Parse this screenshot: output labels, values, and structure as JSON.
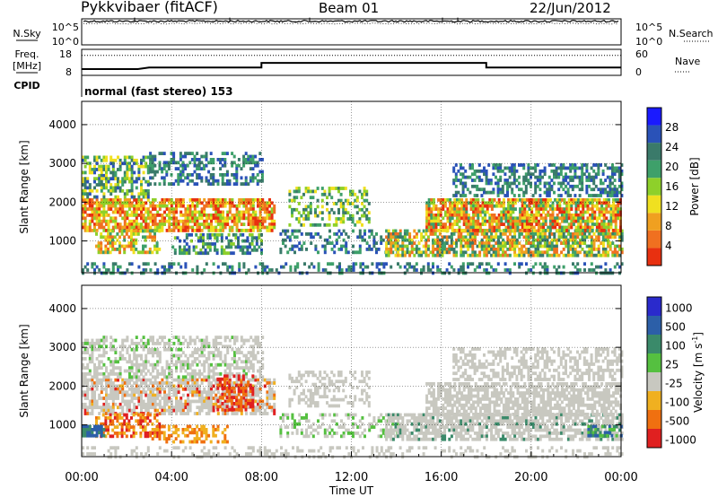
{
  "header": {
    "station": "Pykkvibaer (fitACF)",
    "beam": "Beam 01",
    "date": "22/Jun/2012"
  },
  "chart_data": [
    {
      "type": "line",
      "title": "",
      "ylabel_left": "N.Sky",
      "ylabel_right": "N.Search",
      "yticks_left": [
        "10^5",
        "10^0"
      ],
      "yticks_right": [
        "10^5",
        "10^0"
      ],
      "series": [
        {
          "name": "N.Sky",
          "x": [
            "00:00",
            "24:00"
          ],
          "values": [
            100000,
            100000
          ]
        },
        {
          "name": "N.Search",
          "x": [
            "00:00",
            "24:00"
          ],
          "values": [
            100000,
            100000
          ]
        }
      ]
    },
    {
      "type": "line",
      "ylabel_left": [
        "Freq.",
        "[MHz]"
      ],
      "ylabel_right": "Nave",
      "yticks_left": [
        "18",
        "8"
      ],
      "yticks_right": [
        "60",
        "0"
      ],
      "ylim_left": [
        8,
        18
      ],
      "ylim_right": [
        0,
        60
      ],
      "cpid_label": "CPID",
      "cpid_text": "normal (fast stereo) 153",
      "series": [
        {
          "name": "Freq.",
          "x": [
            "00:00",
            "02:30",
            "03:00",
            "08:00",
            "08:00",
            "18:00",
            "18:00",
            "24:00"
          ],
          "values": [
            10.4,
            10.4,
            11.0,
            11.0,
            12.8,
            12.8,
            11.0,
            11.0
          ]
        },
        {
          "name": "Nave",
          "x": [
            "00:00",
            "24:00"
          ],
          "values": [
            46,
            46
          ]
        }
      ]
    },
    {
      "type": "heatmap",
      "ylabel": "Slant Range [km]",
      "yticks": [
        "1000",
        "2000",
        "3000",
        "4000"
      ],
      "ylim": [
        180,
        4600
      ],
      "colorbar_label": "Power [dB]",
      "colorbar_ticks": [
        "4",
        "8",
        "12",
        "16",
        "20",
        "24",
        "28"
      ],
      "colorbar_range": [
        0,
        30
      ],
      "colors": [
        "#1a1aff",
        "#2a52b8",
        "#3a7a6a",
        "#3ea06a",
        "#8ed02a",
        "#f0e020",
        "#f0a020",
        "#f07020",
        "#e83010"
      ],
      "grid": true
    },
    {
      "type": "heatmap",
      "ylabel": "Slant Range [km]",
      "yticks": [
        "1000",
        "2000",
        "3000",
        "4000"
      ],
      "ylim": [
        180,
        4600
      ],
      "colorbar_label": [
        "Velocity  [m s",
        "-1",
        "]"
      ],
      "colorbar_ticks": [
        "1000",
        "500",
        "100",
        "25",
        "-25",
        "-100",
        "-500",
        "-1000"
      ],
      "colors": [
        "#2a2acc",
        "#2c5fa8",
        "#3a8a6a",
        "#55c040",
        "#c8c8c0",
        "#f0b020",
        "#f07010",
        "#e02020"
      ],
      "grid": true
    }
  ],
  "x_axis": {
    "ticks": [
      "00:00",
      "04:00",
      "08:00",
      "12:00",
      "16:00",
      "20:00",
      "00:00"
    ],
    "label": "Time UT"
  }
}
